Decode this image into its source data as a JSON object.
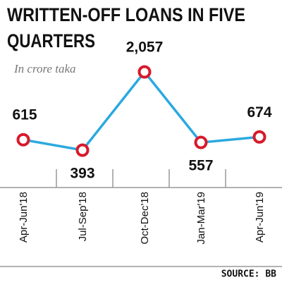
{
  "chart_data": {
    "type": "line",
    "title": [
      "WRITTEN-OFF LOANS IN FIVE",
      "QUARTERS"
    ],
    "subtitle": "In crore taka",
    "categories": [
      "Apr-Jun'18",
      "Jul-Sep'18",
      "Oct-Dec'18",
      "Jan-Mar'19",
      "Apr-Jun'19"
    ],
    "values": [
      615,
      393,
      2057,
      557,
      674
    ],
    "value_labels": [
      "615",
      "393",
      "2,057",
      "557",
      "674"
    ],
    "color": "#2aa9df",
    "marker_color": "#d71a2c",
    "source": "SOURCE: BB"
  }
}
